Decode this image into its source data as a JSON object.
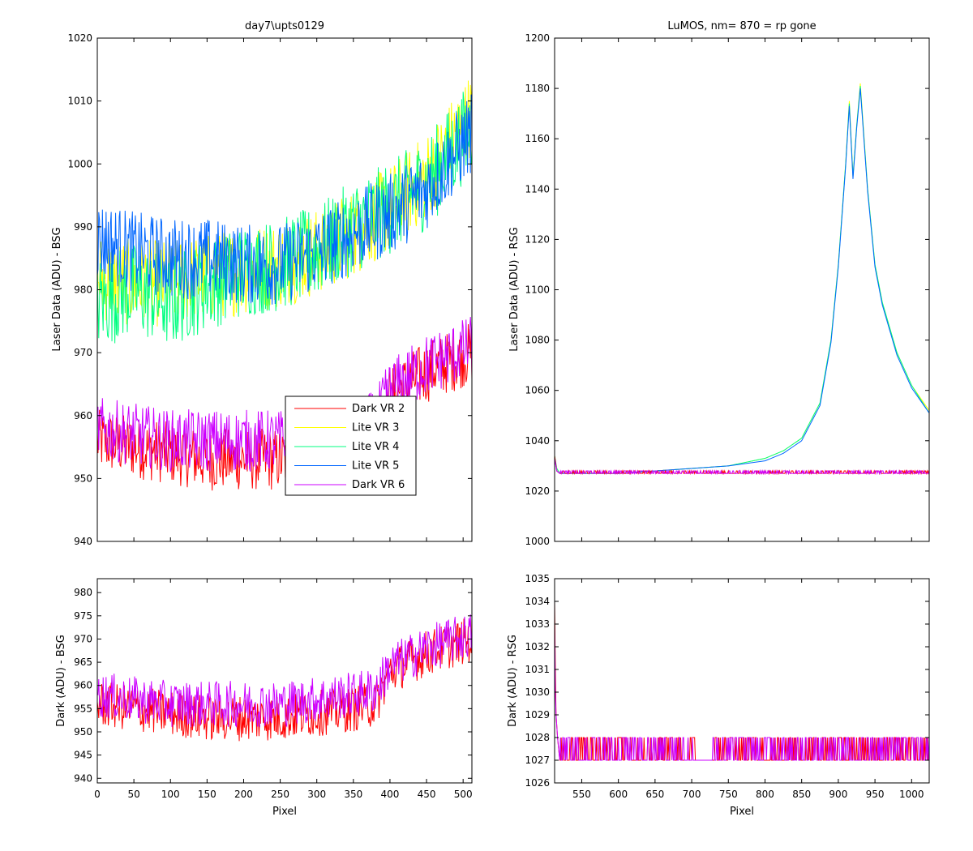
{
  "chart_data": [
    {
      "type": "line",
      "panel": "top-left",
      "title": "day7\\upts0129",
      "xlabel": "",
      "ylabel": "Laser Data (ADU) - BSG",
      "xlim": [
        0,
        512
      ],
      "ylim": [
        940,
        1020
      ],
      "xticks": [
        0,
        50,
        100,
        150,
        200,
        250,
        300,
        350,
        400,
        450,
        500
      ],
      "xtick_labels_visible": false,
      "yticks": [
        940,
        950,
        960,
        970,
        980,
        990,
        1000,
        1010,
        1020
      ],
      "legend": {
        "placement": "lower-middle",
        "entries": [
          "Dark VR 2",
          "Lite VR 3",
          "Lite VR 4",
          "Lite VR 5",
          "Dark VR 6"
        ]
      },
      "series": [
        {
          "name": "Dark VR 2",
          "color": "#ff0000",
          "x": [
            0,
            50,
            100,
            150,
            200,
            250,
            300,
            350,
            380,
            400,
            450,
            512
          ],
          "values": [
            956,
            955,
            954,
            953,
            953,
            953,
            954,
            955,
            956,
            963,
            967,
            970
          ],
          "noise": 10
        },
        {
          "name": "Lite VR 3",
          "color": "#ffff00",
          "x": [
            0,
            50,
            100,
            150,
            200,
            250,
            300,
            350,
            400,
            450,
            512
          ],
          "values": [
            982,
            981,
            981,
            982,
            983,
            984,
            986,
            989,
            993,
            998,
            1008
          ],
          "noise": 14
        },
        {
          "name": "Lite VR 4",
          "color": "#00ff80",
          "x": [
            0,
            50,
            100,
            150,
            200,
            250,
            300,
            350,
            400,
            450,
            512
          ],
          "values": [
            978,
            980,
            978,
            981,
            983,
            984,
            986,
            990,
            993,
            997,
            1006
          ],
          "noise": 15
        },
        {
          "name": "Lite VR 5",
          "color": "#0066ff",
          "x": [
            0,
            50,
            100,
            150,
            200,
            250,
            300,
            350,
            400,
            450,
            512
          ],
          "values": [
            988,
            986,
            985,
            985,
            984,
            984,
            986,
            989,
            992,
            996,
            1005
          ],
          "noise": 13
        },
        {
          "name": "Dark VR 6",
          "color": "#cc00ff",
          "x": [
            0,
            50,
            100,
            150,
            200,
            250,
            300,
            350,
            380,
            400,
            450,
            512
          ],
          "values": [
            958,
            957,
            956,
            956,
            956,
            956,
            957,
            958,
            959,
            964,
            968,
            971
          ],
          "noise": 10
        }
      ]
    },
    {
      "type": "line",
      "panel": "top-right",
      "title": "LuMOS, nm= 870 = rp gone",
      "xlabel": "",
      "ylabel": "Laser Data (ADU) - RSG",
      "xlim": [
        513,
        1024
      ],
      "ylim": [
        1000,
        1200
      ],
      "xticks": [
        550,
        600,
        650,
        700,
        750,
        800,
        850,
        900,
        950,
        1000
      ],
      "xtick_labels_visible": false,
      "yticks": [
        1000,
        1020,
        1040,
        1060,
        1080,
        1100,
        1120,
        1140,
        1160,
        1180,
        1200
      ],
      "series": [
        {
          "name": "Lite VR 3",
          "color": "#ffff00",
          "x": [
            513,
            516,
            520,
            550,
            600,
            650,
            700,
            750,
            800,
            825,
            850,
            875,
            890,
            900,
            910,
            915,
            920,
            925,
            930,
            940,
            950,
            960,
            980,
            1000,
            1024
          ],
          "values": [
            1034,
            1029,
            1027,
            1027,
            1027,
            1028,
            1029,
            1030,
            1033,
            1036,
            1041,
            1055,
            1080,
            1110,
            1150,
            1175,
            1145,
            1165,
            1182,
            1140,
            1110,
            1095,
            1075,
            1062,
            1052
          ]
        },
        {
          "name": "Lite VR 4",
          "color": "#00ff80",
          "x": [
            513,
            516,
            520,
            550,
            600,
            650,
            700,
            750,
            800,
            825,
            850,
            875,
            890,
            900,
            910,
            915,
            920,
            925,
            930,
            940,
            950,
            960,
            980,
            1000,
            1024
          ],
          "values": [
            1034,
            1029,
            1027,
            1027,
            1027,
            1028,
            1029,
            1030,
            1033,
            1036,
            1041,
            1055,
            1080,
            1110,
            1150,
            1174,
            1145,
            1165,
            1181,
            1140,
            1110,
            1095,
            1075,
            1062,
            1051
          ]
        },
        {
          "name": "Lite VR 5",
          "color": "#0066ff",
          "x": [
            513,
            516,
            520,
            550,
            600,
            650,
            700,
            750,
            800,
            825,
            850,
            875,
            890,
            900,
            910,
            915,
            920,
            925,
            930,
            940,
            950,
            960,
            980,
            1000,
            1024
          ],
          "values": [
            1033,
            1028,
            1027,
            1027,
            1027,
            1028,
            1029,
            1030,
            1032,
            1035,
            1040,
            1054,
            1079,
            1109,
            1149,
            1173,
            1144,
            1164,
            1180,
            1139,
            1109,
            1094,
            1074,
            1061,
            1051
          ]
        },
        {
          "name": "Dark VR 2",
          "color": "#ff0000",
          "x": [
            513,
            516,
            520,
            1024
          ],
          "values": [
            1034,
            1028,
            1027,
            1027
          ],
          "flicker": [
            1027,
            1028
          ]
        },
        {
          "name": "Dark VR 6",
          "color": "#cc00ff",
          "x": [
            513,
            516,
            520,
            1024
          ],
          "values": [
            1033,
            1028,
            1027,
            1027
          ],
          "flicker": [
            1027,
            1028
          ]
        }
      ]
    },
    {
      "type": "line",
      "panel": "bottom-left",
      "title": "",
      "xlabel": "Pixel",
      "ylabel": "Dark (ADU) - BSG",
      "xlim": [
        0,
        512
      ],
      "ylim": [
        939,
        983
      ],
      "xticks": [
        0,
        50,
        100,
        150,
        200,
        250,
        300,
        350,
        400,
        450,
        500
      ],
      "yticks": [
        940,
        945,
        950,
        955,
        960,
        965,
        970,
        975,
        980
      ],
      "series": [
        {
          "name": "Dark VR 2",
          "color": "#ff0000",
          "x": [
            0,
            50,
            100,
            150,
            200,
            250,
            300,
            350,
            380,
            400,
            450,
            512
          ],
          "values": [
            956,
            955,
            954,
            953,
            953,
            953,
            954,
            955,
            956,
            963,
            967,
            970
          ],
          "noise": 10
        },
        {
          "name": "Dark VR 6",
          "color": "#cc00ff",
          "x": [
            0,
            50,
            100,
            150,
            200,
            250,
            300,
            350,
            380,
            400,
            450,
            512
          ],
          "values": [
            958,
            957,
            956,
            956,
            956,
            956,
            957,
            958,
            959,
            964,
            968,
            971
          ],
          "noise": 10
        }
      ]
    },
    {
      "type": "line",
      "panel": "bottom-right",
      "title": "",
      "xlabel": "Pixel",
      "ylabel": "Dark (ADU) - RSG",
      "xlim": [
        513,
        1024
      ],
      "ylim": [
        1026,
        1035
      ],
      "xticks": [
        550,
        600,
        650,
        700,
        750,
        800,
        850,
        900,
        950,
        1000
      ],
      "yticks": [
        1026,
        1027,
        1028,
        1029,
        1030,
        1031,
        1032,
        1033,
        1034,
        1035
      ],
      "series": [
        {
          "name": "Dark VR 2",
          "color": "#ff0000",
          "x": [
            513,
            514,
            515,
            517,
            520,
            1024
          ],
          "values": [
            1034,
            1031,
            1029,
            1028,
            1027,
            1027
          ],
          "flicker": [
            1027,
            1028
          ],
          "gap_x": [
            705,
            728
          ]
        },
        {
          "name": "Dark VR 6",
          "color": "#cc00ff",
          "x": [
            513,
            514,
            515,
            517,
            520,
            1024
          ],
          "values": [
            1033,
            1030,
            1029,
            1028,
            1027,
            1027
          ],
          "flicker": [
            1027,
            1028
          ],
          "gap_x": [
            705,
            728
          ]
        }
      ]
    }
  ]
}
